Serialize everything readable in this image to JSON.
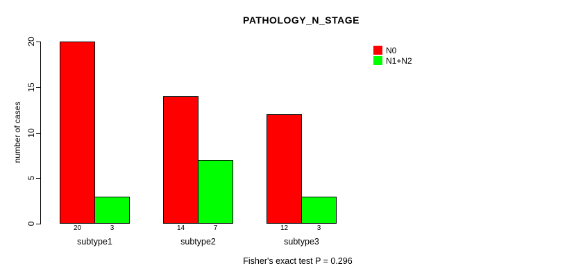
{
  "chart_data": {
    "type": "bar",
    "title": "PATHOLOGY_N_STAGE",
    "xlabel": "",
    "ylabel": "number of cases",
    "ylim": [
      0,
      20
    ],
    "yticks": [
      0,
      5,
      10,
      15,
      20
    ],
    "categories": [
      "subtype1",
      "subtype2",
      "subtype3"
    ],
    "series": [
      {
        "name": "N0",
        "color": "#ff0000",
        "values": [
          20,
          14,
          12
        ]
      },
      {
        "name": "N1+N2",
        "color": "#00ff00",
        "values": [
          3,
          7,
          3
        ]
      }
    ],
    "bar_value_labels": [
      [
        "20",
        "3"
      ],
      [
        "14",
        "7"
      ],
      [
        "12",
        "3"
      ]
    ],
    "legend_position": "top-right",
    "grid": false,
    "annotation": "Fisher's exact test P = 0.296"
  },
  "colors": {
    "background": "#ffffff",
    "axis": "#000000",
    "text": "#000000",
    "bar_border": "#000000"
  }
}
